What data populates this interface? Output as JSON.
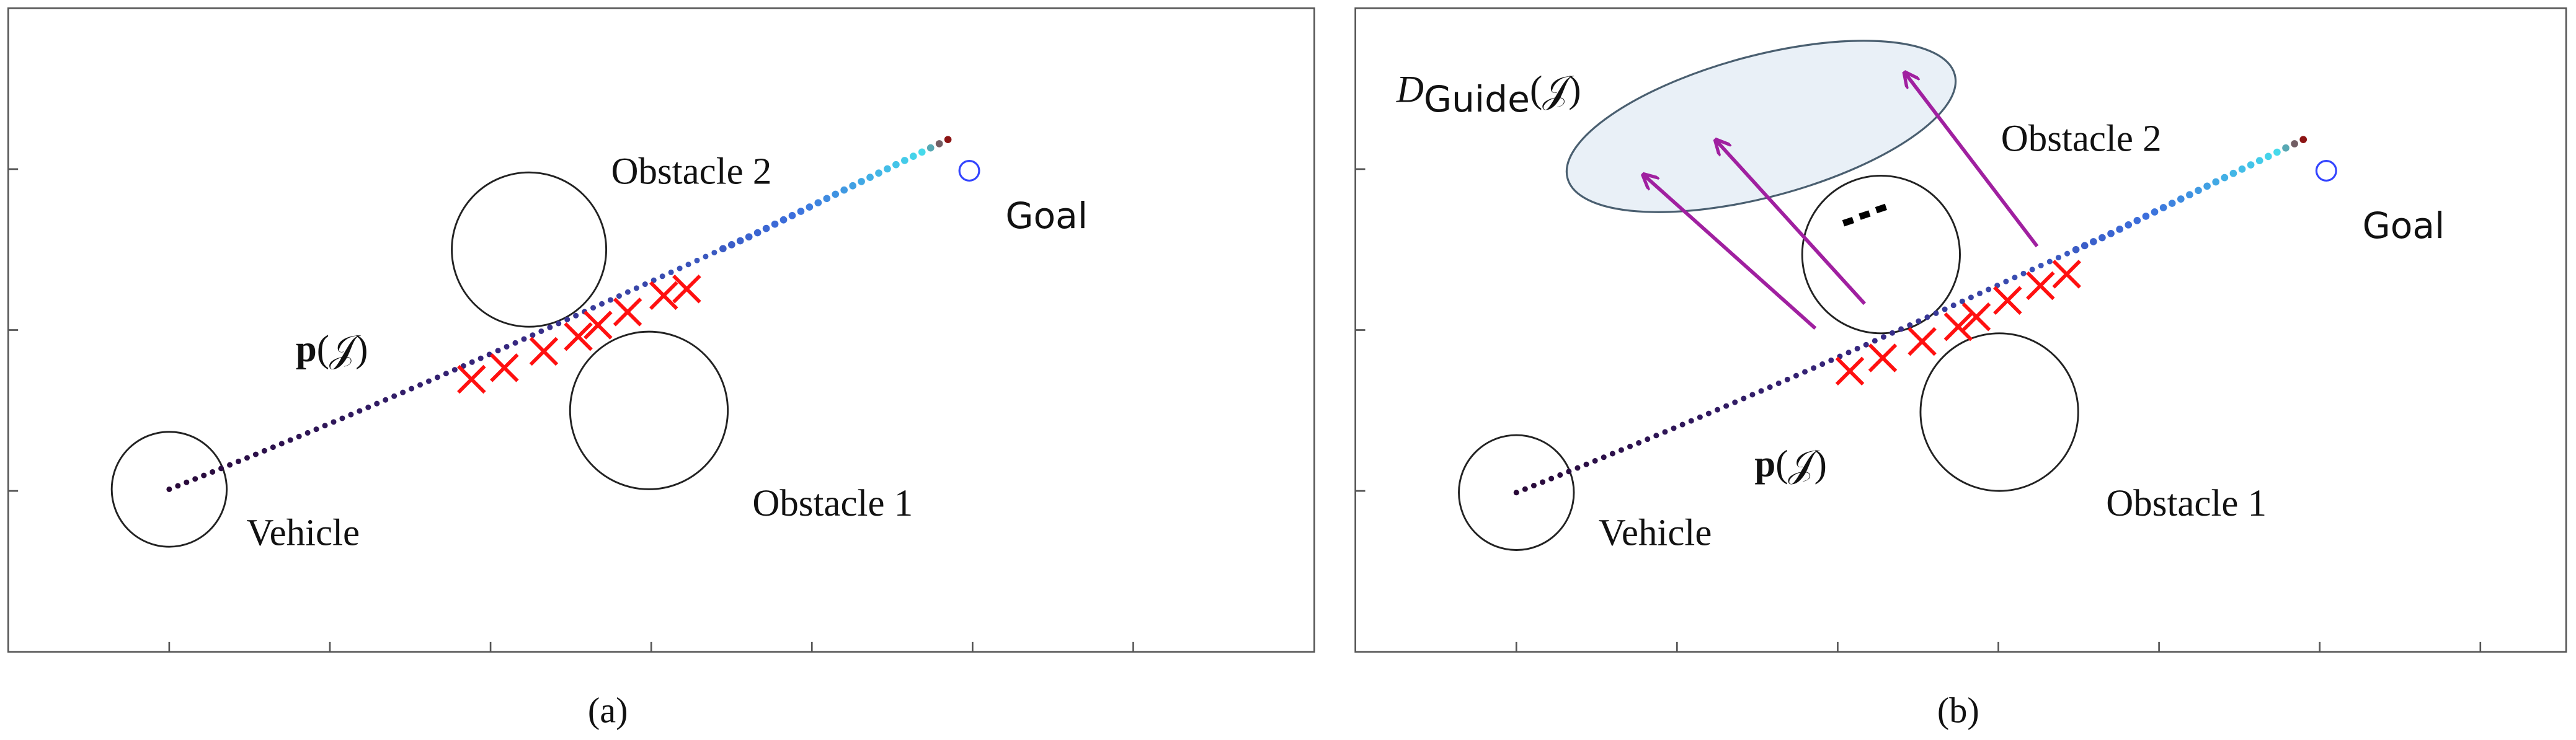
{
  "panels": [
    {
      "caption": "(a)",
      "obstacle_2": "Obstacle 2",
      "goal": "Goal",
      "path_label": {
        "symbol": "p",
        "argument": "(𝒥)"
      },
      "obstacle_1": "Obstacle 1",
      "vehicle": "Vehicle"
    },
    {
      "caption": "(b)",
      "obstacle_2": "Obstacle 2",
      "goal": "Goal",
      "path_label": {
        "symbol": "p",
        "argument": "(𝒥)"
      },
      "obstacle_1": "Obstacle 1",
      "vehicle": "Vehicle",
      "guide_label": {
        "symbol": "D",
        "subscript": "Guide",
        "argument": "(𝒥)"
      }
    }
  ]
}
